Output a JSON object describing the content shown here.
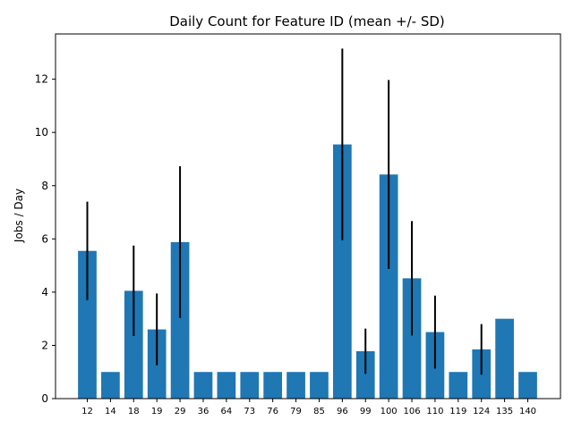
{
  "chart_data": {
    "type": "bar",
    "title": "Daily Count for Feature ID (mean +/- SD)",
    "xlabel": "",
    "ylabel": "Jobs  /  Day",
    "ylim": [
      0,
      13.7
    ],
    "yticks": [
      0,
      2,
      4,
      6,
      8,
      10,
      12
    ],
    "grid": false,
    "bar_color": "#1f77b4",
    "error_color": "#000000",
    "categories": [
      "12",
      "14",
      "18",
      "19",
      "29",
      "36",
      "64",
      "73",
      "76",
      "79",
      "85",
      "96",
      "99",
      "100",
      "106",
      "110",
      "119",
      "124",
      "135",
      "140"
    ],
    "values": [
      5.55,
      1,
      4.05,
      2.6,
      5.88,
      1,
      1,
      1,
      1,
      1,
      1,
      9.55,
      1.78,
      8.42,
      4.52,
      2.5,
      1,
      1.85,
      3.0,
      1
    ],
    "errors": [
      1.85,
      0,
      1.7,
      1.35,
      2.85,
      0,
      0,
      0,
      0,
      0,
      0,
      3.6,
      0.85,
      3.55,
      2.15,
      1.37,
      0,
      0.95,
      0,
      0
    ]
  }
}
